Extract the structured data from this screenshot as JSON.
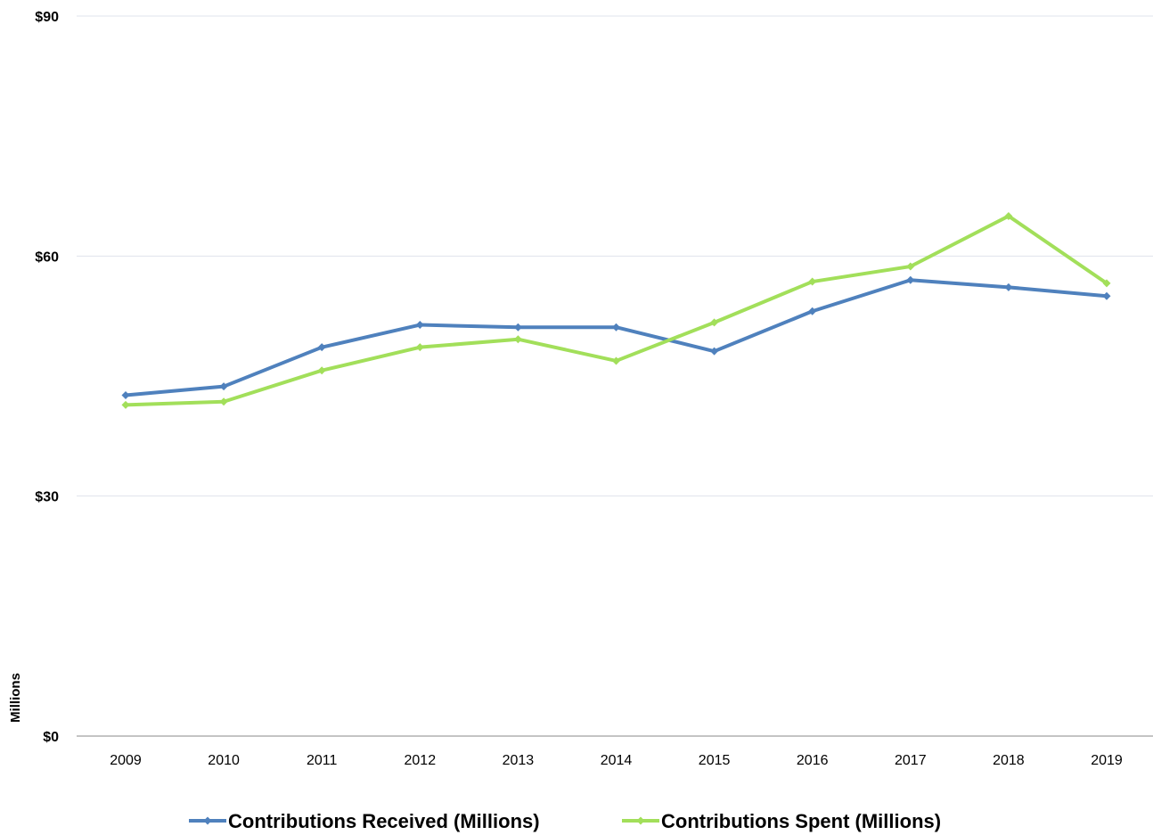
{
  "chart_data": {
    "type": "line",
    "title": "",
    "xlabel": "",
    "ylabel": "Millions",
    "categories": [
      "2009",
      "2010",
      "2011",
      "2012",
      "2013",
      "2014",
      "2015",
      "2016",
      "2017",
      "2018",
      "2019"
    ],
    "series": [
      {
        "name": "Contributions Received (Millions)",
        "color": "#4f81bd",
        "values": [
          42.6,
          43.7,
          48.6,
          51.4,
          51.1,
          51.1,
          48.1,
          53.1,
          57.0,
          56.1,
          55.0
        ]
      },
      {
        "name": "Contributions Spent (Millions)",
        "color": "#a2df5a",
        "values": [
          41.4,
          41.8,
          45.7,
          48.6,
          49.6,
          46.9,
          51.7,
          56.8,
          58.7,
          65.0,
          56.6
        ]
      }
    ],
    "ylim": [
      0,
      90
    ],
    "yticks": [
      0,
      30,
      60,
      90
    ],
    "ytick_labels": [
      "$0",
      "$30",
      "$60",
      "$90"
    ],
    "grid": "horizontal",
    "legend": "bottom"
  }
}
